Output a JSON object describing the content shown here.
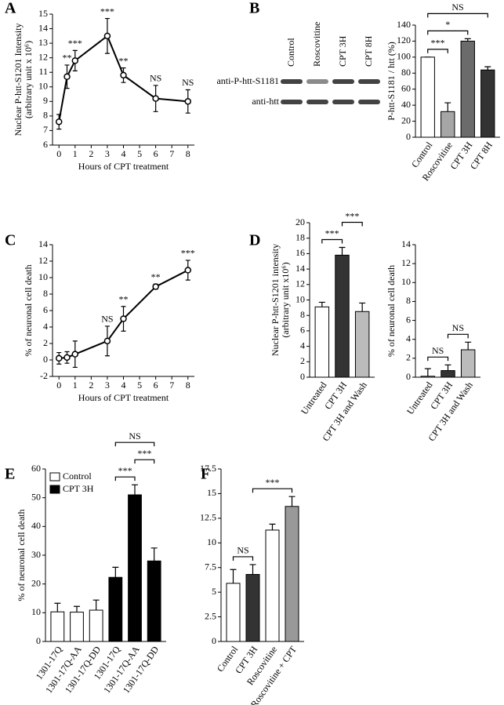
{
  "blot": {
    "lanes": [
      "Control",
      "Roscovitine",
      "CPT 3H",
      "CPT 8H"
    ],
    "rows": [
      "anti-P-htt-S1181",
      "anti-htt"
    ]
  },
  "chart_data": [
    {
      "type": "line",
      "panel_label": "A",
      "ylabel": [
        "Nuclear P-htt-S1201 Intensity",
        "(arbitrary unit x 10⁶)"
      ],
      "xlabel": "Hours of CPT treatment",
      "x": [
        0,
        0.5,
        1,
        3,
        4,
        6,
        8
      ],
      "series": [
        {
          "color": "#000000",
          "values": [
            7.6,
            10.7,
            11.8,
            13.5,
            10.8,
            9.2,
            9.0
          ],
          "errors": [
            0.5,
            0.8,
            0.7,
            1.2,
            0.5,
            0.9,
            0.8
          ]
        }
      ],
      "xlim": [
        -0.4,
        8.4
      ],
      "xticks": [
        0,
        1,
        2,
        3,
        4,
        5,
        6,
        7,
        8
      ],
      "ylim": [
        6,
        15
      ],
      "yticks": [
        6,
        7,
        8,
        9,
        10,
        11,
        12,
        13,
        14,
        15
      ],
      "annotations": [
        {
          "x": 0.5,
          "text": "**"
        },
        {
          "x": 1,
          "text": "***"
        },
        {
          "x": 3,
          "text": "***"
        },
        {
          "x": 4,
          "text": "**"
        },
        {
          "x": 6,
          "text": "NS"
        },
        {
          "x": 8,
          "text": "NS"
        }
      ]
    },
    {
      "type": "bar",
      "panel_label": "B",
      "ylabel": [
        "P-htt-S1181 / htt (%)"
      ],
      "categories": [
        "Control",
        "Roscovitine",
        "CPT 3H",
        "CPT 8H"
      ],
      "series": [
        {
          "colors": [
            "#ffffff",
            "#a6a6a6",
            "#6b6b6b",
            "#333333"
          ],
          "values": [
            100,
            32,
            120,
            84
          ],
          "errors": [
            0,
            11,
            3,
            4
          ]
        }
      ],
      "ylim": [
        0,
        140
      ],
      "yticks": [
        0,
        20,
        40,
        60,
        80,
        100,
        120,
        140
      ],
      "brackets": [
        {
          "from": 0,
          "to": 1,
          "text": "***"
        },
        {
          "from": 0,
          "to": 2,
          "text": "*"
        },
        {
          "from": 0,
          "to": 3,
          "text": "NS"
        }
      ]
    },
    {
      "type": "line",
      "panel_label": "C",
      "ylabel": [
        "% of neuronal cell death"
      ],
      "xlabel": "Hours of CPT treatment",
      "x": [
        0,
        0.5,
        1,
        3,
        4,
        6,
        8
      ],
      "series": [
        {
          "color": "#000000",
          "values": [
            0.2,
            0.3,
            0.7,
            2.3,
            5.0,
            8.9,
            10.9
          ],
          "errors": [
            0.7,
            0.7,
            1.6,
            1.8,
            1.5,
            0.3,
            1.2
          ]
        }
      ],
      "xlim": [
        -0.4,
        8.4
      ],
      "xticks": [
        0,
        1,
        2,
        3,
        4,
        5,
        6,
        7,
        8
      ],
      "ylim": [
        -2,
        14
      ],
      "yticks": [
        -2,
        0,
        2,
        4,
        6,
        8,
        10,
        12,
        14
      ],
      "annotations": [
        {
          "x": 3,
          "text": "NS"
        },
        {
          "x": 4,
          "text": "**"
        },
        {
          "x": 6,
          "text": "**"
        },
        {
          "x": 8,
          "text": "***"
        }
      ]
    },
    {
      "type": "bar",
      "panel_label": "D",
      "ylabel": [
        "Nuclear P-htt-S1201 intensity",
        "(arbitrary unit x10⁶)"
      ],
      "categories": [
        "Untreated",
        "CPT 3H",
        "CPT 3H and Wash"
      ],
      "series": [
        {
          "colors": [
            "#ffffff",
            "#333333",
            "#bbbbbb"
          ],
          "values": [
            9.1,
            15.8,
            8.5
          ],
          "errors": [
            0.6,
            1.0,
            1.1
          ]
        }
      ],
      "ylim": [
        0,
        20
      ],
      "yticks": [
        0,
        2,
        4,
        6,
        8,
        10,
        12,
        14,
        16,
        18,
        20
      ],
      "brackets": [
        {
          "from": 0,
          "to": 1,
          "text": "***"
        },
        {
          "from": 1,
          "to": 2,
          "text": "***"
        }
      ]
    },
    {
      "type": "bar",
      "ylabel": [
        "% of neuronal cell death"
      ],
      "categories": [
        "Untreated",
        "CPT 3H",
        "CPT 3H and Wash"
      ],
      "series": [
        {
          "colors": [
            "#ffffff",
            "#333333",
            "#bbbbbb"
          ],
          "values": [
            0.1,
            0.7,
            2.9
          ],
          "errors": [
            0.8,
            0.6,
            0.8
          ]
        }
      ],
      "ylim": [
        0,
        14
      ],
      "yticks": [
        0,
        2,
        4,
        6,
        8,
        10,
        12,
        14
      ],
      "brackets": [
        {
          "from": 0,
          "to": 1,
          "text": "NS"
        },
        {
          "from": 1,
          "to": 2,
          "text": "NS"
        }
      ]
    },
    {
      "type": "bar",
      "panel_label": "E",
      "ylabel": [
        "% of neuronal cell death"
      ],
      "categories": [
        "1301-17Q",
        "1301-17Q-AA",
        "1301-17Q-DD",
        "1301-17Q",
        "1301-17Q-AA",
        "1301-17Q-DD"
      ],
      "series": [
        {
          "name": "Control",
          "color": "#ffffff",
          "values": [
            10.3,
            10.2,
            10.9,
            null,
            null,
            null
          ],
          "errors": [
            3,
            2,
            3.5,
            null,
            null,
            null
          ]
        },
        {
          "name": "CPT 3H",
          "color": "#000000",
          "values": [
            null,
            null,
            null,
            22.3,
            51,
            28
          ],
          "errors": [
            null,
            null,
            null,
            3.5,
            3.5,
            4.5
          ]
        }
      ],
      "ylim": [
        0,
        60
      ],
      "yticks": [
        0,
        10,
        20,
        30,
        40,
        50,
        60
      ],
      "brackets": [
        {
          "from": 3,
          "to": 4,
          "text": "***"
        },
        {
          "from": 4,
          "to": 5,
          "text": "***"
        },
        {
          "from": 3,
          "to": 5,
          "text": "NS"
        }
      ]
    },
    {
      "type": "bar",
      "panel_label": "F",
      "categories": [
        "Control",
        "CPT 3H",
        "Roscovitine",
        "Roscovitine + CPT"
      ],
      "series": [
        {
          "colors": [
            "#ffffff",
            "#333333",
            "#ffffff",
            "#999999"
          ],
          "values": [
            5.9,
            6.8,
            11.3,
            13.7
          ],
          "errors": [
            1.4,
            1.0,
            0.6,
            1.0
          ]
        }
      ],
      "ylim": [
        0,
        17.5
      ],
      "yticks": [
        0,
        2.5,
        5,
        7.5,
        10,
        12.5,
        15,
        17.5
      ],
      "brackets": [
        {
          "from": 0,
          "to": 1,
          "text": "NS"
        },
        {
          "from": 1,
          "to": 3,
          "text": "***"
        }
      ]
    }
  ]
}
